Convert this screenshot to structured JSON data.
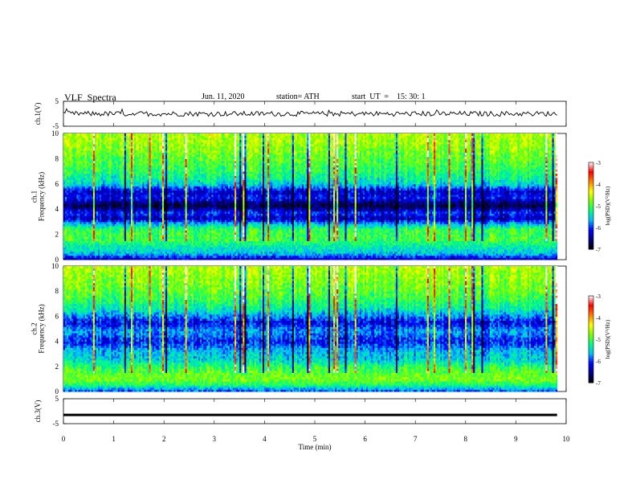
{
  "header": {
    "title": "VLF  Spectra",
    "date": "Jun. 11, 2020",
    "station": "station= ATH",
    "start": "start  UT  =    15: 30: 1"
  },
  "chart_data": {
    "type": "heatmap",
    "x": {
      "label": "Time  (min)",
      "range": [
        0,
        10
      ],
      "ticks": [
        "0",
        "1",
        "2",
        "3",
        "4",
        "5",
        "6",
        "7",
        "8",
        "9",
        "10"
      ],
      "data_end": 9.82
    },
    "panels": [
      {
        "id": "ch1-waveform",
        "type": "line",
        "ylabel": "ch.1(V)",
        "ylim": [
          -5,
          5
        ],
        "yticks": [
          "5",
          "-5"
        ],
        "trace_level": 0.0,
        "trace_noise": 1.0,
        "trace_color": "#000000"
      },
      {
        "id": "ch1-spectrogram",
        "type": "heatmap",
        "ylabel": "ch.1\nFrequency  (kHz)",
        "ylim": [
          0,
          10
        ],
        "yticks": [
          "0",
          "2",
          "4",
          "6",
          "8",
          "10"
        ],
        "colorbar": {
          "label": "log(PSD)(V²/Hz)",
          "range": [
            -7,
            -3
          ],
          "ticks": [
            "-3",
            "-4",
            "-5",
            "-6",
            "-7"
          ]
        },
        "profile_khz": [
          [
            0,
            -6.4
          ],
          [
            0.5,
            -5.6
          ],
          [
            1.0,
            -5.4
          ],
          [
            1.6,
            -5.0
          ],
          [
            2.4,
            -5.05
          ],
          [
            2.9,
            -5.7
          ],
          [
            3.3,
            -6.4
          ],
          [
            3.7,
            -6.0
          ],
          [
            4.3,
            -6.8
          ],
          [
            4.9,
            -6.1
          ],
          [
            5.4,
            -6.3
          ],
          [
            6.0,
            -5.5
          ],
          [
            7.0,
            -5.1
          ],
          [
            8.0,
            -4.9
          ],
          [
            9.0,
            -4.7
          ],
          [
            10.0,
            -4.6
          ]
        ]
      },
      {
        "id": "ch2-spectrogram",
        "type": "heatmap",
        "ylabel": "ch.2\nFrequency  (kHz)",
        "ylim": [
          0,
          10
        ],
        "yticks": [
          "0",
          "2",
          "4",
          "6",
          "8",
          "10"
        ],
        "colorbar": {
          "label": "log(PSD)(V²/Hz)",
          "range": [
            -7,
            -3
          ],
          "ticks": [
            "-3",
            "-4",
            "-5",
            "-6",
            "-7"
          ]
        },
        "profile_khz": [
          [
            0,
            -6.0
          ],
          [
            0.6,
            -5.1
          ],
          [
            1.0,
            -4.8
          ],
          [
            1.5,
            -4.9
          ],
          [
            2.0,
            -5.1
          ],
          [
            2.5,
            -5.5
          ],
          [
            3.2,
            -5.6
          ],
          [
            4.0,
            -6.1
          ],
          [
            4.8,
            -5.7
          ],
          [
            5.5,
            -6.2
          ],
          [
            6.5,
            -5.4
          ],
          [
            7.5,
            -5.0
          ],
          [
            8.5,
            -4.8
          ],
          [
            10.0,
            -4.6
          ]
        ]
      },
      {
        "id": "ch3-waveform",
        "type": "line",
        "ylabel": "ch.3(V)",
        "ylim": [
          -5,
          5
        ],
        "yticks": [
          "5",
          "-5"
        ],
        "trace_level": -1.5,
        "trace_noise": 0.0,
        "trace_color": "#000000"
      }
    ]
  },
  "colormap": [
    "#000000",
    "#000080",
    "#0000ff",
    "#00bfff",
    "#00ff80",
    "#80ff00",
    "#ffff00",
    "#ff8000",
    "#ff0000",
    "#ffffff"
  ]
}
